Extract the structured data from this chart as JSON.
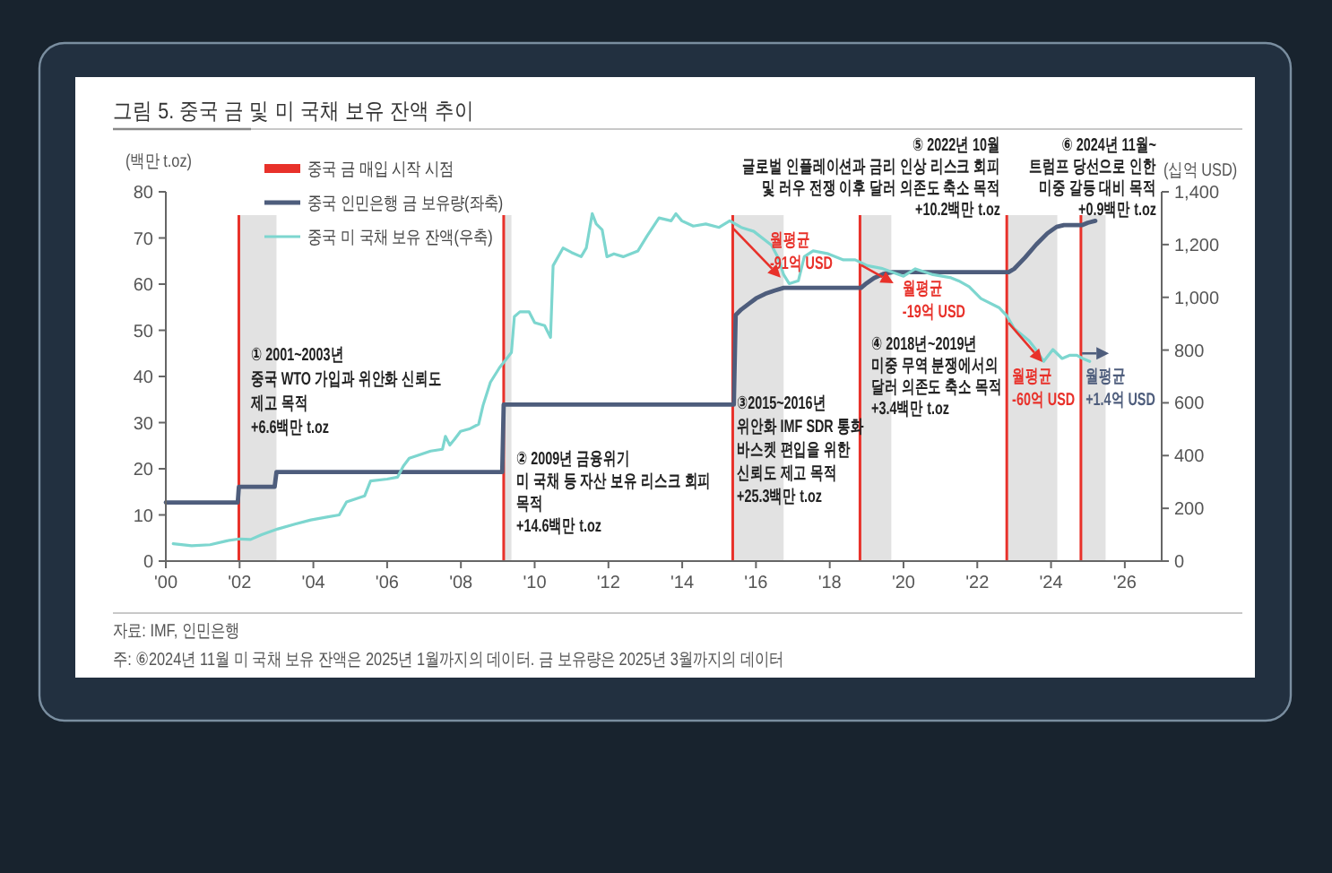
{
  "chart_data": {
    "type": "line",
    "title": "그림 5. 중국 금 및 미 국채 보유 잔액 추이",
    "ylabel": "(백만 t.oz)",
    "y2label": "(십억 USD)",
    "xlim": [
      2000,
      2027
    ],
    "xticks": [
      {
        "value": 2000,
        "label": "'00"
      },
      {
        "value": 2002,
        "label": "'02"
      },
      {
        "value": 2004,
        "label": "'04"
      },
      {
        "value": 2006,
        "label": "'06"
      },
      {
        "value": 2008,
        "label": "'08"
      },
      {
        "value": 2010,
        "label": "'10"
      },
      {
        "value": 2012,
        "label": "'12"
      },
      {
        "value": 2014,
        "label": "'14"
      },
      {
        "value": 2016,
        "label": "'16"
      },
      {
        "value": 2018,
        "label": "'18"
      },
      {
        "value": 2020,
        "label": "'20"
      },
      {
        "value": 2022,
        "label": "'22"
      },
      {
        "value": 2024,
        "label": "'24"
      },
      {
        "value": 2026,
        "label": "'26"
      }
    ],
    "ylim": [
      0,
      80
    ],
    "yticks": [
      0,
      10,
      20,
      30,
      40,
      50,
      60,
      70,
      80
    ],
    "y2lim": [
      0,
      1400
    ],
    "y2ticks": [
      0,
      200,
      400,
      600,
      800,
      {
        "value": 1000,
        "label": "1,000"
      },
      {
        "value": 1200,
        "label": "1,200"
      },
      {
        "value": 1400,
        "label": "1,400"
      }
    ],
    "legend": "top left",
    "series": [
      {
        "name": "중국 인민은행 금 보유량(좌축)",
        "color": "#4e5d7c",
        "x": [
          2000,
          2001.95,
          2001.98,
          2002.95,
          2003.0,
          2009.12,
          2009.16,
          2015.4,
          2015.45,
          2015.6,
          2015.8,
          2016.0,
          2016.25,
          2016.5,
          2016.75,
          2018.85,
          2019.0,
          2019.2,
          2019.45,
          2019.7,
          2022.85,
          2023.0,
          2023.3,
          2023.6,
          2023.9,
          2024.15,
          2024.35,
          2024.85,
          2025.0,
          2025.2
        ],
        "values": [
          12.7,
          12.7,
          16.1,
          16.1,
          19.3,
          19.3,
          33.9,
          33.9,
          53.3,
          54.5,
          55.7,
          56.9,
          57.9,
          58.6,
          59.2,
          59.2,
          60.2,
          61.3,
          62.2,
          62.6,
          62.6,
          63.3,
          65.8,
          68.6,
          71.0,
          72.4,
          72.8,
          72.8,
          73.3,
          73.7
        ]
      },
      {
        "name": "중국 미 국채 보유 잔액(우축)",
        "color": "#7dd6cf",
        "axis": "y2",
        "x": [
          2000.2,
          2000.7,
          2001.2,
          2001.66,
          2002.0,
          2002.3,
          2002.6,
          2003.04,
          2003.5,
          2003.93,
          2004.4,
          2004.7,
          2004.9,
          2005.39,
          2005.55,
          2006.0,
          2006.28,
          2006.44,
          2006.6,
          2007.18,
          2007.5,
          2007.58,
          2007.7,
          2007.83,
          2007.99,
          2008.23,
          2008.48,
          2008.6,
          2008.8,
          2009.05,
          2009.2,
          2009.37,
          2009.45,
          2009.6,
          2009.85,
          2010.0,
          2010.27,
          2010.35,
          2010.43,
          2010.5,
          2010.77,
          2011.0,
          2011.26,
          2011.4,
          2011.56,
          2011.67,
          2011.83,
          2011.96,
          2012.15,
          2012.4,
          2012.8,
          2013.05,
          2013.37,
          2013.7,
          2013.83,
          2013.99,
          2014.3,
          2014.64,
          2015.0,
          2015.29,
          2015.6,
          2015.94,
          2016.42,
          2016.6,
          2016.75,
          2016.9,
          2017.15,
          2017.31,
          2017.55,
          2017.96,
          2018.37,
          2018.69,
          2019.02,
          2019.4,
          2019.67,
          2020.0,
          2020.32,
          2020.8,
          2021.29,
          2021.5,
          2021.78,
          2022.1,
          2022.59,
          2022.8,
          2023.0,
          2023.4,
          2023.6,
          2023.8,
          2024.05,
          2024.3,
          2024.5,
          2024.7,
          2024.86,
          2025.05
        ],
        "values": [
          66,
          58,
          62,
          77,
          84,
          82,
          100,
          122,
          140,
          156,
          168,
          175,
          224,
          247,
          304,
          311,
          318,
          360,
          390,
          417,
          424,
          473,
          440,
          462,
          492,
          501,
          519,
          590,
          678,
          734,
          760,
          791,
          927,
          945,
          945,
          904,
          893,
          870,
          848,
          1120,
          1187,
          1170,
          1154,
          1187,
          1317,
          1278,
          1256,
          1154,
          1165,
          1154,
          1176,
          1233,
          1301,
          1290,
          1317,
          1290,
          1270,
          1278,
          1265,
          1290,
          1265,
          1250,
          1198,
          1150,
          1086,
          1052,
          1063,
          1154,
          1176,
          1165,
          1142,
          1142,
          1120,
          1110,
          1097,
          1080,
          1108,
          1086,
          1074,
          1062,
          1040,
          995,
          961,
          930,
          882,
          836,
          800,
          757,
          802,
          768,
          780,
          780,
          768,
          757
        ]
      }
    ],
    "ref_lines": [
      {
        "axis": "x",
        "value": 2001.98,
        "label": "중국 금 매입 시작 시점",
        "color": "#e8312a"
      },
      {
        "axis": "x",
        "value": 2009.16,
        "color": "#e8312a"
      },
      {
        "axis": "x",
        "value": 2015.37,
        "color": "#e8312a"
      },
      {
        "axis": "x",
        "value": 2018.82,
        "color": "#e8312a"
      },
      {
        "axis": "x",
        "value": 2022.8,
        "color": "#e8312a"
      },
      {
        "axis": "x",
        "value": 2024.81,
        "color": "#e8312a"
      }
    ],
    "bands": [
      {
        "axis": "x",
        "from": 2001.98,
        "to": 2003.0,
        "color": "#e2e2e2"
      },
      {
        "axis": "x",
        "from": 2009.16,
        "to": 2009.37,
        "color": "#e2e2e2"
      },
      {
        "axis": "x",
        "from": 2015.37,
        "to": 2016.75,
        "color": "#e2e2e2"
      },
      {
        "axis": "x",
        "from": 2018.82,
        "to": 2019.67,
        "color": "#e2e2e2"
      },
      {
        "axis": "x",
        "from": 2022.8,
        "to": 2024.17,
        "color": "#e2e2e2"
      },
      {
        "axis": "x",
        "from": 2024.81,
        "to": 2025.48,
        "color": "#e2e2e2"
      }
    ],
    "annotations": [
      "① 2001~2003년\n중국 WTO 가입과 위안화 신뢰도\n제고 목적\n+6.6백만 t.oz",
      "② 2009년 금융위기\n미 국채 등 자산 보유 리스크 회피\n목적\n+14.6백만 t.oz",
      "③2015~2016년\n위안화 IMF SDR 통화\n바스켓 편입을 위한\n신뢰도 제고 목적\n+25.3백만 t.oz",
      "④ 2018년~2019년\n미중 무역 분쟁에서의\n달러 의존도 축소 목적\n+3.4백만 t.oz",
      "⑤ 2022년 10월\n글로벌 인플레이션과 금리 인상 리스크 회피\n및 러우 전쟁 이후 달러 의존도 축소 목적\n+10.2백만 t.oz",
      "⑥ 2024년 11월~\n트럼프 당선으로 인한\n미중 갈등 대비 목적\n+0.9백만 t.oz",
      {
        "text": "월평균\n-91억 USD",
        "x": 2016.67,
        "y": 61.4
      },
      {
        "text": "월평균\n-19억 USD",
        "x": 2019.73,
        "y": 60.2
      },
      {
        "text": "월평균\n-60억 USD",
        "x": 2023.77,
        "y": 43.1
      },
      {
        "text": "월평균\n+1.4억 USD",
        "x": 2025.57,
        "y": 45.0
      },
      "자료: IMF, 인민은행",
      "주: ⑥2024년 11월 미 국채 보유 잔액은 2025년 1월까지의 데이터. 금 보유량은 2025년 3월까지의 데이터"
    ]
  }
}
